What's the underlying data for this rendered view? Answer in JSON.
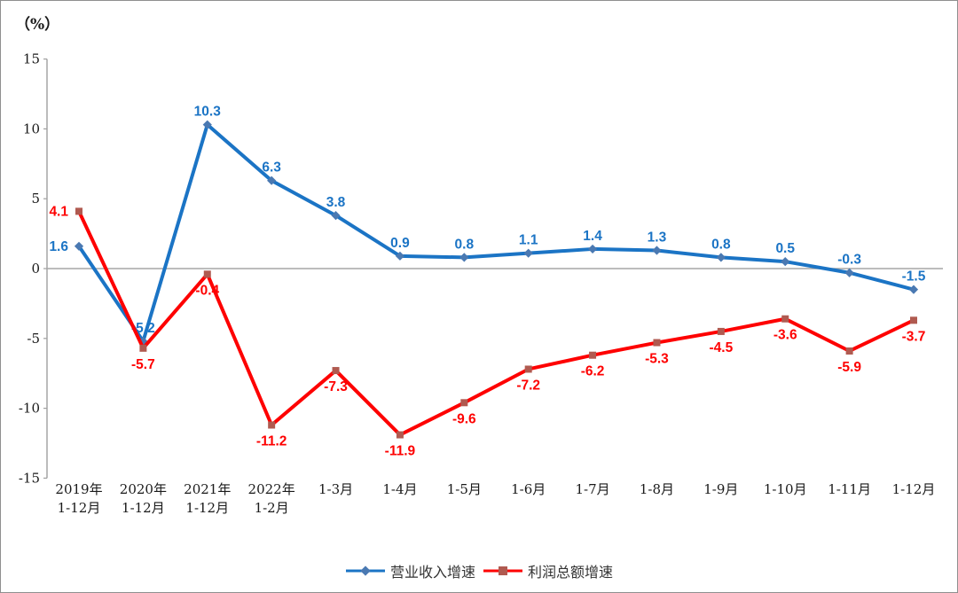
{
  "unit_label": "（%）",
  "axis": {
    "color": "#a0a0a0",
    "tick_label_color": "#1a1a1a",
    "zero_line_color": "#a6a6a6"
  },
  "chart_data": {
    "type": "line",
    "title": "",
    "xlabel": "",
    "ylabel": "（%）",
    "ylim": [
      -15,
      15
    ],
    "yticks": [
      15,
      10,
      5,
      0,
      -5,
      -10,
      -15
    ],
    "grid": false,
    "legend_position": "bottom",
    "categories": [
      "2019年\n1-12月",
      "2020年\n1-12月",
      "2021年\n1-12月",
      "2022年\n1-2月",
      "1-3月",
      "1-4月",
      "1-5月",
      "1-6月",
      "1-7月",
      "1-8月",
      "1-9月",
      "1-10月",
      "1-11月",
      "1-12月"
    ],
    "series": [
      {
        "name": "营业收入增速",
        "color": "#1B74C5",
        "marker": "diamond",
        "marker_color": "#4A79B2",
        "label_color": "#1B74C5",
        "values": [
          1.6,
          -5.2,
          10.3,
          6.3,
          3.8,
          0.9,
          0.8,
          1.1,
          1.4,
          1.3,
          0.8,
          0.5,
          -0.3,
          -1.5
        ]
      },
      {
        "name": "利润总额增速",
        "color": "#FE0000",
        "marker": "square",
        "marker_color": "#B05A50",
        "label_color": "#FE0000",
        "values": [
          4.1,
          -5.7,
          -0.4,
          -11.2,
          -7.3,
          -11.9,
          -9.6,
          -7.2,
          -6.2,
          -5.3,
          -4.5,
          -3.6,
          -5.9,
          -3.7
        ]
      }
    ]
  }
}
